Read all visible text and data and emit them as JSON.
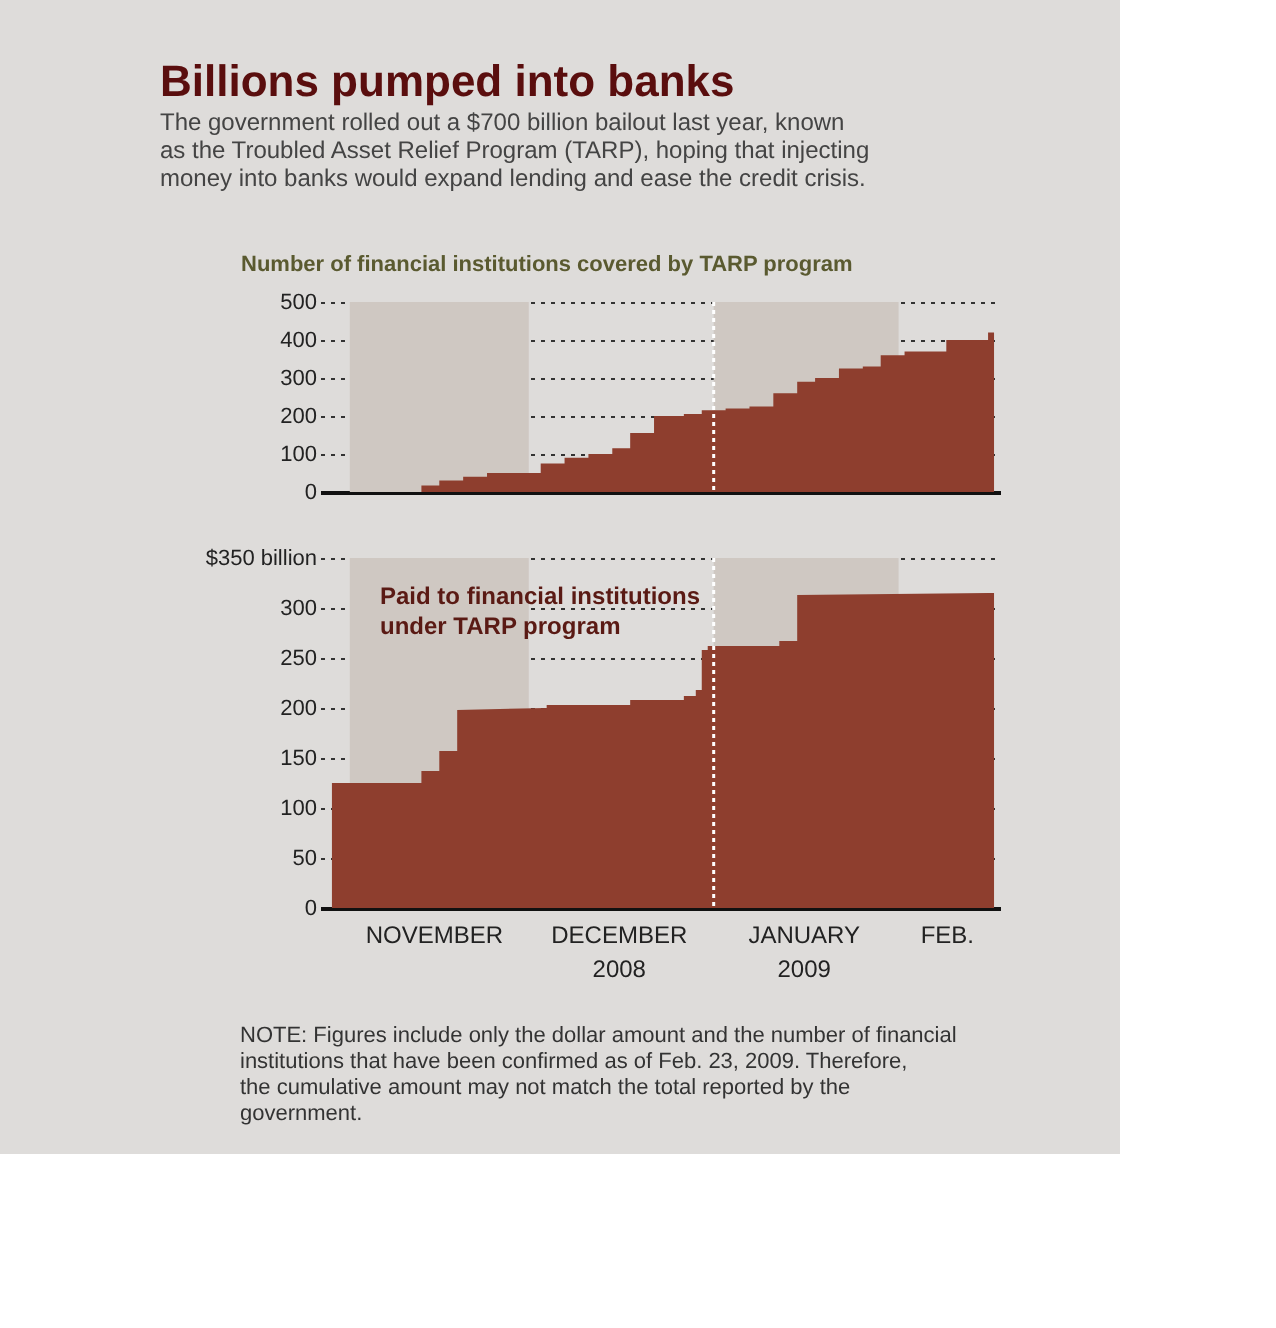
{
  "chart_data": [
    {
      "type": "area",
      "title": "Billions pumped into banks",
      "subtitle": "The government rolled out a $700 billion bailout last year, known as the Troubled Asset Relief Program (TARP), hoping that injecting money into banks would expand lending and ease the credit crisis.",
      "ylabel": "Number of financial institutions covered by TARP program",
      "x": [
        "2008-10-27",
        "2008-11-13",
        "2008-11-13",
        "2008-11-16",
        "2008-11-16",
        "2008-11-20",
        "2008-11-20",
        "2008-11-24",
        "2008-11-24",
        "2008-12-03",
        "2008-12-03",
        "2008-12-07",
        "2008-12-07",
        "2008-12-11",
        "2008-12-11",
        "2008-12-15",
        "2008-12-15",
        "2008-12-18",
        "2008-12-18",
        "2008-12-22",
        "2008-12-22",
        "2008-12-27",
        "2008-12-27",
        "2008-12-30",
        "2008-12-30",
        "2009-01-03",
        "2009-01-03",
        "2009-01-07",
        "2009-01-07",
        "2009-01-11",
        "2009-01-11",
        "2009-01-15",
        "2009-01-15",
        "2009-01-18",
        "2009-01-18",
        "2009-01-22",
        "2009-01-22",
        "2009-01-26",
        "2009-01-26",
        "2009-01-29",
        "2009-01-29",
        "2009-02-02",
        "2009-02-02",
        "2009-02-09",
        "2009-02-09",
        "2009-02-16",
        "2009-02-16",
        "2009-02-17"
      ],
      "values": [
        0,
        0,
        17,
        17,
        30,
        30,
        40,
        40,
        50,
        50,
        75,
        75,
        90,
        90,
        100,
        100,
        115,
        115,
        155,
        155,
        200,
        200,
        205,
        205,
        215,
        215,
        220,
        220,
        225,
        225,
        260,
        260,
        290,
        290,
        300,
        300,
        325,
        325,
        330,
        330,
        360,
        360,
        370,
        370,
        400,
        400,
        420,
        420
      ],
      "color": "#8e3e2e",
      "xlim": [
        "2008-10-27",
        "2009-02-18"
      ],
      "ylim": [
        0,
        500
      ],
      "yticks": [
        0,
        100,
        200,
        300,
        400,
        500
      ],
      "grid": "y",
      "tick_labels": "y",
      "bands": [
        {
          "axis": "x",
          "from": "2008-11-01",
          "to": "2008-12-01",
          "color": "#cfc8c2"
        },
        {
          "axis": "x",
          "from": "2009-01-01",
          "to": "2009-02-01",
          "color": "#cfc8c2"
        }
      ],
      "ref_lines": [
        {
          "axis": "x",
          "value": "2009-01-01",
          "color": "#ffffff",
          "line_style": "dotted"
        }
      ]
    },
    {
      "type": "area",
      "x": [
        "2008-10-29",
        "2008-11-13",
        "2008-11-13",
        "2008-11-16",
        "2008-11-16",
        "2008-11-19",
        "2008-11-19",
        "2008-12-04",
        "2008-12-04",
        "2008-12-18",
        "2008-12-18",
        "2008-12-27",
        "2008-12-27",
        "2008-12-29",
        "2008-12-29",
        "2008-12-30",
        "2008-12-30",
        "2008-12-31",
        "2008-12-31",
        "2009-01-12",
        "2009-01-12",
        "2009-01-15",
        "2009-01-15",
        "2009-02-16",
        "2009-02-17"
      ],
      "values": [
        125,
        125,
        137,
        137,
        157,
        157,
        198,
        200,
        203,
        203,
        208,
        208,
        212,
        212,
        218,
        218,
        258,
        258,
        262,
        262,
        267,
        267,
        313,
        315,
        315
      ],
      "color": "#8e3e2e",
      "xlim": [
        "2008-10-27",
        "2009-02-18"
      ],
      "xticks": [
        {
          "value": "2008-11-15",
          "label": "NOVEMBER"
        },
        {
          "value": "2008-12-16",
          "label": "DECEMBER 2008"
        },
        {
          "value": "2009-01-16",
          "label": "JANUARY 2009"
        },
        {
          "value": "2009-02-09",
          "label": "FEB."
        }
      ],
      "ylim": [
        0,
        350
      ],
      "yticks": [
        0,
        50,
        100,
        150,
        200,
        250,
        300,
        {
          "value": 350,
          "label": "$350 billion"
        }
      ],
      "grid": "y",
      "bands": [
        {
          "axis": "x",
          "from": "2008-11-01",
          "to": "2008-12-01",
          "color": "#cfc8c2"
        },
        {
          "axis": "x",
          "from": "2009-01-01",
          "to": "2009-02-01",
          "color": "#cfc8c2"
        }
      ],
      "ref_lines": [
        {
          "axis": "x",
          "value": "2009-01-01",
          "color": "#ffffff",
          "line_style": "dotted"
        }
      ],
      "annotations": [
        "Paid to financial institutions under TARP program",
        "NOTE: Figures include only the dollar amount and the number of financial institutions that have been confirmed as of Feb. 23, 2009. Therefore, the cumulative amount may not match the total reported by the government."
      ]
    }
  ]
}
